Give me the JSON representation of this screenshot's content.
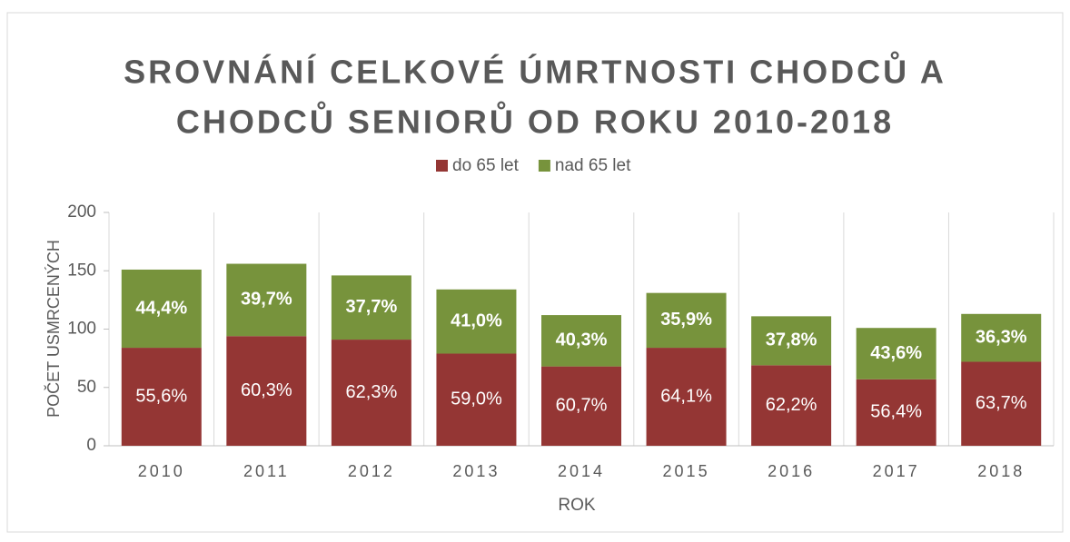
{
  "chart_data": {
    "type": "stacked_bar",
    "title": "SROVNÁNÍ CELKOVÉ ÚMRTNOSTI CHODCŮ A",
    "subtitle": "CHODCŮ SENIORŮ OD ROKU 2010-2018",
    "x_label": "ROK",
    "y_label": "POČET USMRCENÝCH",
    "categories": [
      "2010",
      "2011",
      "2012",
      "2013",
      "2014",
      "2015",
      "2016",
      "2017",
      "2018"
    ],
    "series": [
      {
        "name": "do 65 let",
        "color": "#943634",
        "values": [
          84,
          94,
          91,
          79,
          68,
          84,
          69,
          57,
          72
        ],
        "shares": [
          55.6,
          60.3,
          62.3,
          59.0,
          60.7,
          64.1,
          62.2,
          56.4,
          63.7
        ],
        "share_labels": [
          "55,6%",
          "60,3%",
          "62,3%",
          "59,0%",
          "60,7%",
          "64,1%",
          "62,2%",
          "56,4%",
          "63,7%"
        ]
      },
      {
        "name": "nad 65 let",
        "color": "#77933c",
        "values": [
          67,
          62,
          55,
          55,
          44,
          47,
          42,
          44,
          41
        ],
        "shares": [
          44.4,
          39.7,
          37.7,
          41.0,
          40.3,
          35.9,
          37.8,
          43.6,
          36.3
        ],
        "share_labels": [
          "44,4%",
          "39,7%",
          "37,7%",
          "41,0%",
          "40,3%",
          "35,9%",
          "37,8%",
          "43,6%",
          "36,3%"
        ]
      }
    ],
    "ylim": [
      0,
      200
    ],
    "yticks": [
      0,
      50,
      100,
      150,
      200
    ],
    "legend": "top"
  }
}
